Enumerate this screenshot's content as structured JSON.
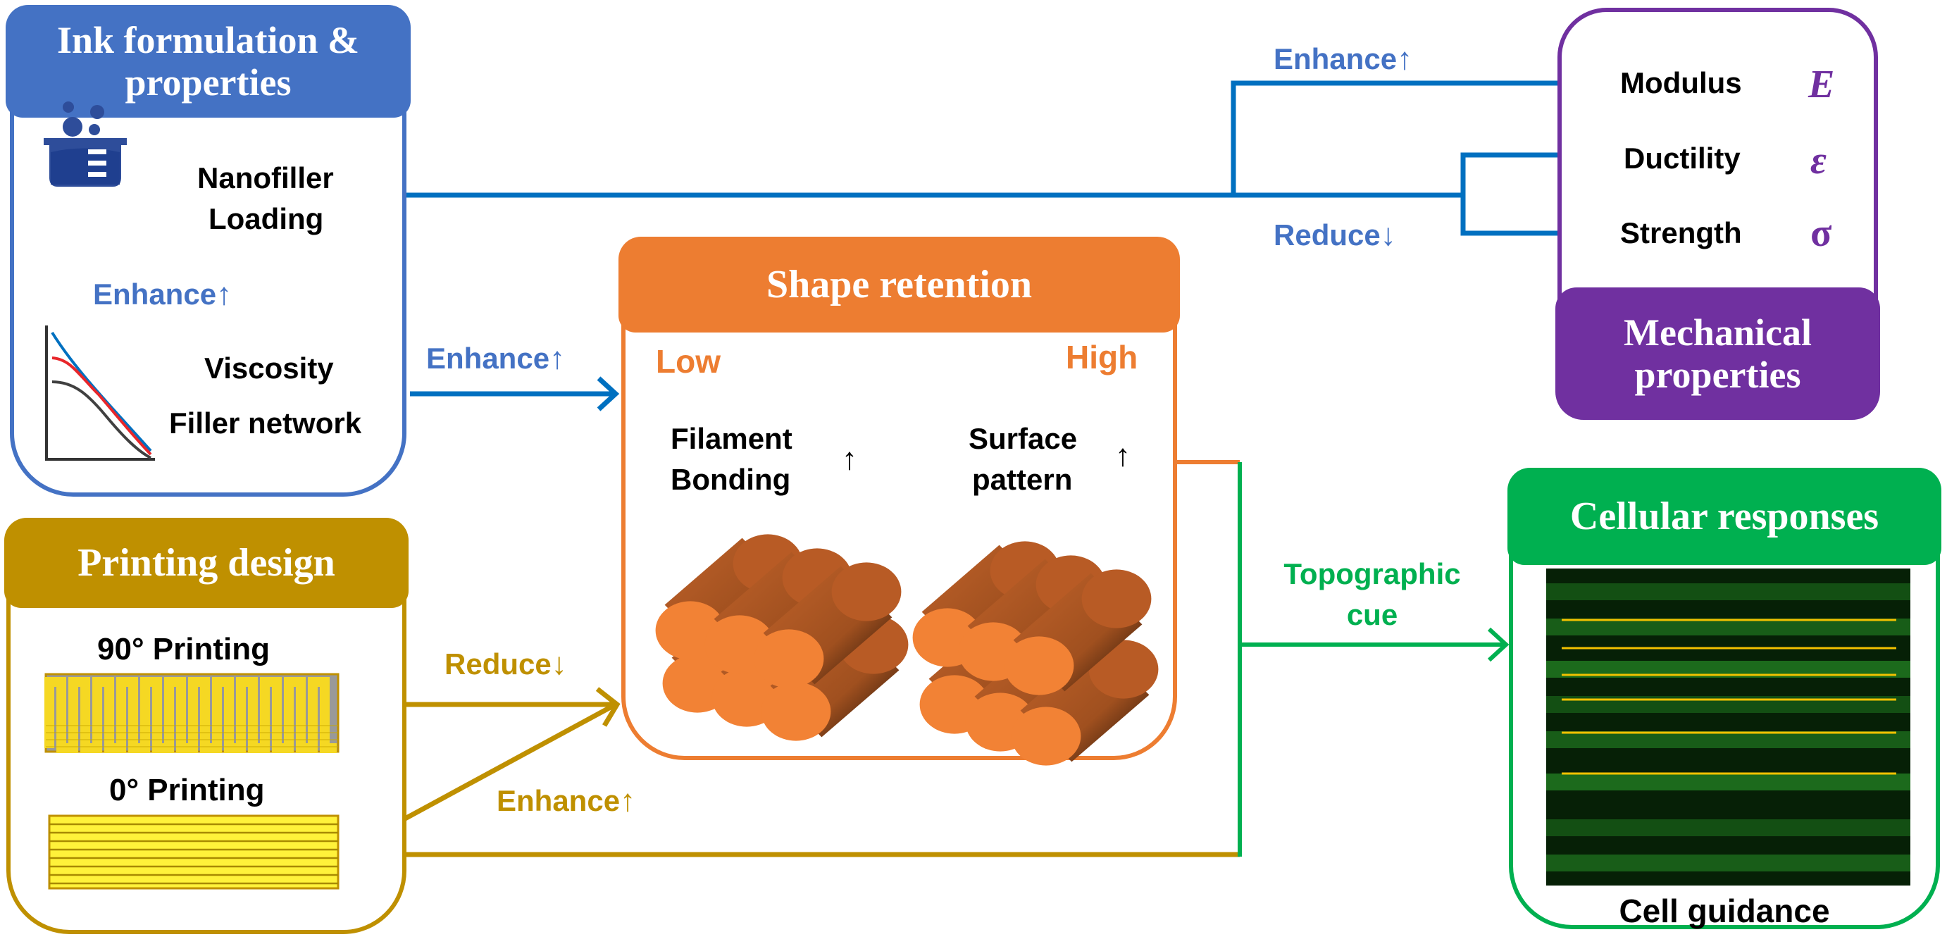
{
  "ink": {
    "title": "Ink formulation & properties",
    "nanofiller": "Nanofiller",
    "loading": "Loading",
    "enhance": "Enhance",
    "viscosity": "Viscosity",
    "filler_network": "Filler network"
  },
  "printing": {
    "title": "Printing design",
    "p90": "90° Printing",
    "p0": "0° Printing"
  },
  "shape": {
    "title": "Shape retention",
    "low": "Low",
    "high": "High",
    "filament": "Filament",
    "bonding": "Bonding",
    "surface": "Surface",
    "pattern": "pattern"
  },
  "mechanical": {
    "title": "Mechanical properties",
    "modulus": "Modulus",
    "modulus_sym": "E",
    "ductility": "Ductility",
    "ductility_sym": "ε",
    "strength": "Strength",
    "strength_sym": "σ"
  },
  "cellular": {
    "title": "Cellular responses",
    "caption": "Cell guidance"
  },
  "links": {
    "enhance_to_shape": "Enhance",
    "enhance_mech": "Enhance",
    "reduce_mech": "Reduce",
    "reduce_90": "Reduce",
    "enhance_0": "Enhance",
    "topographic": "Topographic",
    "cue": "cue"
  },
  "arrows": {
    "up": "↑",
    "down": "↓"
  },
  "colors": {
    "blue_header": "#4472C4",
    "blue_arrow": "#0070C0",
    "orange": "#ED7D31",
    "gold": "#BF9000",
    "purple": "#7030A0",
    "green": "#00B050"
  }
}
